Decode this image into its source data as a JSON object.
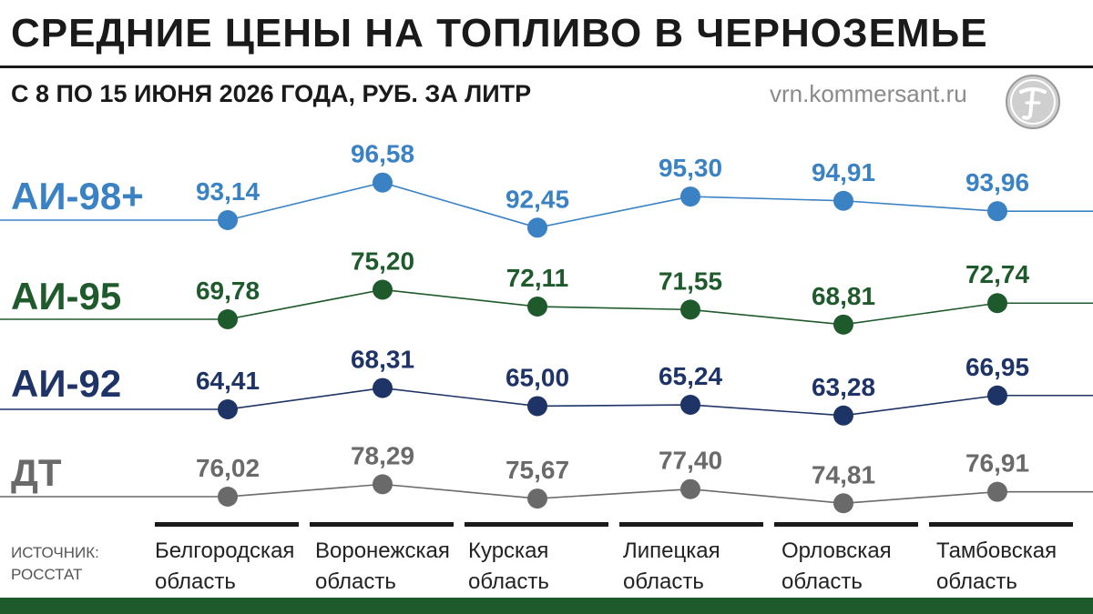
{
  "header": {
    "title": "СРЕДНИЕ ЦЕНЫ НА ТОПЛИВО В ЧЕРНОЗЕМЬЕ",
    "subtitle": "С 8 ПО 15 ИЮНЯ 2026 ГОДА, РУБ. ЗА ЛИТР",
    "site": "vrn.kommersant.ru"
  },
  "source": {
    "line1": "ИСТОЧНИК:",
    "line2": "РОССТАТ"
  },
  "regions": [
    {
      "line1": "Белгородская",
      "line2": "область"
    },
    {
      "line1": "Воронежская",
      "line2": "область"
    },
    {
      "line1": "Курская",
      "line2": "область"
    },
    {
      "line1": "Липецкая",
      "line2": "область"
    },
    {
      "line1": "Орловская",
      "line2": "область"
    },
    {
      "line1": "Тамбовская",
      "line2": "область"
    }
  ],
  "chart_data": {
    "type": "line",
    "title": "СРЕДНИЕ ЦЕНЫ НА ТОПЛИВО В ЧЕРНОЗЕМЬЕ",
    "subtitle": "С 8 ПО 15 ИЮНЯ 2026 ГОДА, РУБ. ЗА ЛИТР",
    "categories": [
      "Белгородская область",
      "Воронежская область",
      "Курская область",
      "Липецкая область",
      "Орловская область",
      "Тамбовская область"
    ],
    "series": [
      {
        "name": "АИ-98+",
        "color": "#3a82c4",
        "values": [
          93.14,
          96.58,
          92.45,
          95.3,
          94.91,
          93.96
        ],
        "labels": [
          "93,14",
          "96,58",
          "92,45",
          "95,30",
          "94,91",
          "93,96"
        ]
      },
      {
        "name": "АИ-95",
        "color": "#1f5a2c",
        "values": [
          69.78,
          75.2,
          72.11,
          71.55,
          68.81,
          72.74
        ],
        "labels": [
          "69,78",
          "75,20",
          "72,11",
          "71,55",
          "68,81",
          "72,74"
        ]
      },
      {
        "name": "АИ-92",
        "color": "#1e3366",
        "values": [
          64.41,
          68.31,
          65.0,
          65.24,
          63.28,
          66.95
        ],
        "labels": [
          "64,41",
          "68,31",
          "65,00",
          "65,24",
          "63,28",
          "66,95"
        ]
      },
      {
        "name": "ДТ",
        "color": "#6a6a6a",
        "values": [
          76.02,
          78.29,
          75.67,
          77.4,
          74.81,
          76.91
        ],
        "labels": [
          "76,02",
          "78,29",
          "75,67",
          "77,40",
          "74,81",
          "76,91"
        ]
      }
    ],
    "grid": false,
    "legend": "left, inline labels"
  }
}
